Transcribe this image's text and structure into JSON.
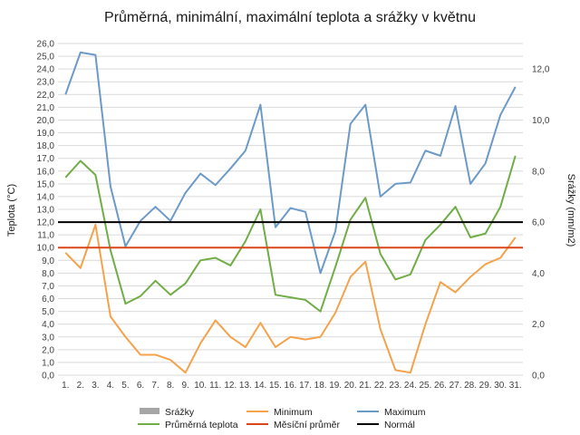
{
  "chart_data": {
    "type": "line",
    "title": "Průměrná, minimální, maximální teplota a srážky v květnu",
    "categories": [
      "1.",
      "2.",
      "3.",
      "4.",
      "5.",
      "6.",
      "7.",
      "8.",
      "9.",
      "10.",
      "11.",
      "12.",
      "13.",
      "14.",
      "15.",
      "16.",
      "17.",
      "18.",
      "19.",
      "20.",
      "21.",
      "22.",
      "23.",
      "24.",
      "25.",
      "26.",
      "27.",
      "28.",
      "29.",
      "30.",
      "31."
    ],
    "ylabel": "Teplota (°C)",
    "y2label": "Srážky (mm/m2)",
    "ylim": [
      0,
      26
    ],
    "y2lim": [
      0,
      13
    ],
    "y_ticks": [
      "0,0",
      "1,0",
      "2,0",
      "3,0",
      "4,0",
      "5,0",
      "6,0",
      "7,0",
      "8,0",
      "9,0",
      "10,0",
      "11,0",
      "12,0",
      "13,0",
      "14,0",
      "15,0",
      "16,0",
      "17,0",
      "18,0",
      "19,0",
      "20,0",
      "21,0",
      "22,0",
      "23,0",
      "24,0",
      "25,0",
      "26,0"
    ],
    "y2_ticks": [
      "0,0",
      "2,0",
      "4,0",
      "6,0",
      "8,0",
      "10,0",
      "12,0"
    ],
    "grid": true,
    "legend_position": "bottom",
    "series": [
      {
        "name": "Srážky",
        "kind": "bar",
        "axis": "right",
        "color": "#a6a6a6",
        "values": [
          0,
          0,
          0,
          0,
          0,
          0,
          0,
          0,
          0,
          0,
          0,
          0,
          0,
          0,
          0,
          0,
          0,
          0,
          0,
          0,
          0,
          0,
          0,
          0,
          0,
          0,
          0,
          0,
          0,
          0,
          0
        ]
      },
      {
        "name": "Minimum",
        "kind": "line",
        "axis": "left",
        "color": "#f4a24b",
        "values": [
          9.6,
          8.4,
          11.8,
          4.6,
          3.0,
          1.6,
          1.6,
          1.2,
          0.2,
          2.5,
          4.3,
          3.0,
          2.2,
          4.1,
          2.2,
          3.0,
          2.8,
          3.0,
          4.9,
          7.7,
          8.9,
          3.6,
          0.4,
          0.2,
          4.0,
          7.3,
          6.5,
          7.7,
          8.7,
          9.2,
          10.8
        ]
      },
      {
        "name": "Maximum",
        "kind": "line",
        "axis": "left",
        "color": "#6b9ac9",
        "values": [
          22.0,
          25.3,
          25.1,
          14.8,
          10.1,
          12.1,
          13.2,
          12.1,
          14.3,
          15.8,
          14.9,
          16.2,
          17.6,
          21.2,
          11.6,
          13.1,
          12.8,
          8.0,
          11.3,
          19.7,
          21.2,
          14.0,
          15.0,
          15.1,
          17.6,
          17.2,
          21.1,
          15.0,
          16.6,
          20.4,
          22.6
        ]
      },
      {
        "name": "Průměrná teplota",
        "kind": "line",
        "axis": "left",
        "color": "#70ad47",
        "values": [
          15.5,
          16.8,
          15.7,
          9.8,
          5.6,
          6.2,
          7.4,
          6.3,
          7.2,
          9.0,
          9.2,
          8.6,
          10.5,
          13.0,
          6.3,
          6.1,
          5.9,
          5.0,
          8.5,
          12.2,
          13.9,
          9.5,
          7.5,
          7.9,
          10.6,
          11.8,
          13.2,
          10.8,
          11.1,
          13.2,
          17.2
        ]
      },
      {
        "name": "Měsíční průměr",
        "kind": "line",
        "axis": "left",
        "color": "#d9461a",
        "values": [
          10.0,
          10.0,
          10.0,
          10.0,
          10.0,
          10.0,
          10.0,
          10.0,
          10.0,
          10.0,
          10.0,
          10.0,
          10.0,
          10.0,
          10.0,
          10.0,
          10.0,
          10.0,
          10.0,
          10.0,
          10.0,
          10.0,
          10.0,
          10.0,
          10.0,
          10.0,
          10.0,
          10.0,
          10.0,
          10.0,
          10.0
        ]
      },
      {
        "name": "Normál",
        "kind": "line",
        "axis": "left",
        "color": "#000000",
        "values": [
          12.0,
          12.0,
          12.0,
          12.0,
          12.0,
          12.0,
          12.0,
          12.0,
          12.0,
          12.0,
          12.0,
          12.0,
          12.0,
          12.0,
          12.0,
          12.0,
          12.0,
          12.0,
          12.0,
          12.0,
          12.0,
          12.0,
          12.0,
          12.0,
          12.0,
          12.0,
          12.0,
          12.0,
          12.0,
          12.0,
          12.0
        ]
      }
    ]
  }
}
